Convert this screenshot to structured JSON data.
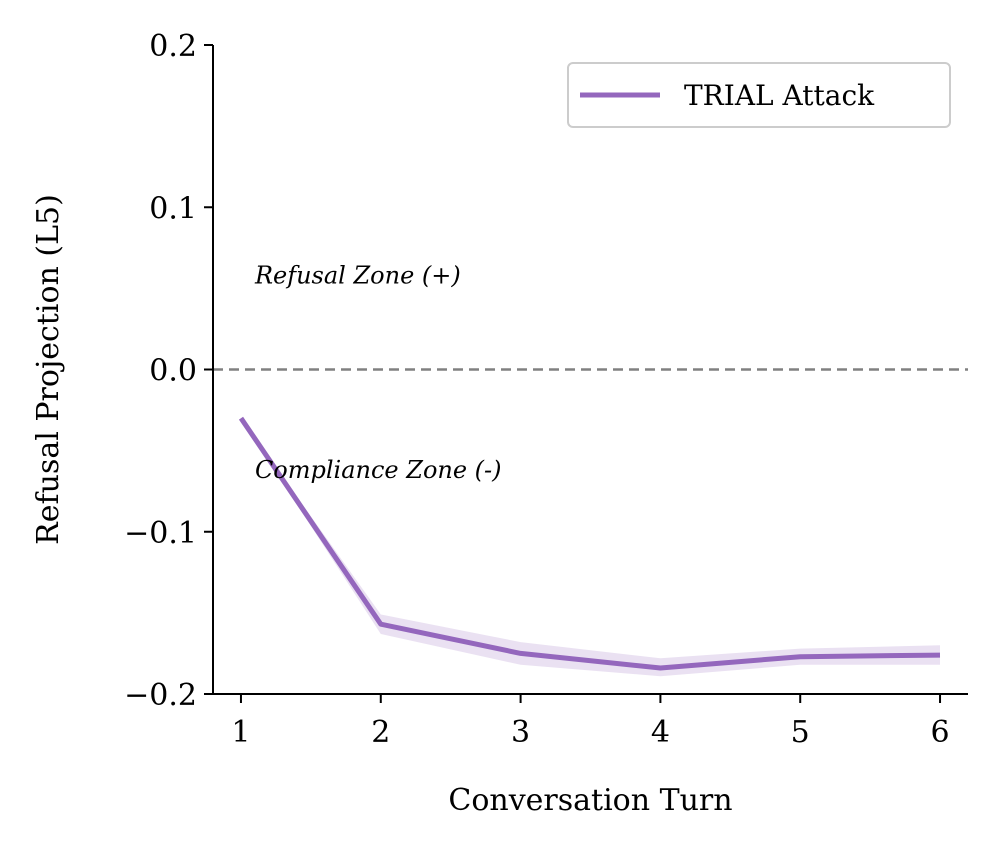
{
  "chart_data": {
    "type": "line",
    "xlabel": "Conversation Turn",
    "ylabel": "Refusal Projection (L5)",
    "x": [
      1,
      2,
      3,
      4,
      5,
      6
    ],
    "xlim": [
      0.8,
      6.2
    ],
    "ylim": [
      -0.2,
      0.2
    ],
    "x_ticks": [
      "1",
      "2",
      "3",
      "4",
      "5",
      "6"
    ],
    "y_ticks": [
      "0.2",
      "0.1",
      "0.0",
      "−0.1",
      "−0.2"
    ],
    "y_tick_values": [
      0.2,
      0.1,
      0.0,
      -0.1,
      -0.2
    ],
    "grid": false,
    "legend_position": "top-right",
    "series": [
      {
        "name": "TRIAL Attack",
        "color": "#9467bd",
        "values": [
          -0.03,
          -0.157,
          -0.175,
          -0.184,
          -0.177,
          -0.176
        ],
        "band_lower": [
          -0.03,
          -0.163,
          -0.182,
          -0.189,
          -0.182,
          -0.182
        ],
        "band_upper": [
          -0.03,
          -0.151,
          -0.168,
          -0.178,
          -0.172,
          -0.17
        ]
      }
    ],
    "reference_line": {
      "y": 0.0,
      "style": "dashed",
      "color": "#808080"
    },
    "annotations": [
      {
        "text": "Refusal Zone (+)",
        "x": 1.1,
        "y": 0.058
      },
      {
        "text": "Compliance Zone (-)",
        "x": 1.1,
        "y": -0.062
      }
    ]
  }
}
